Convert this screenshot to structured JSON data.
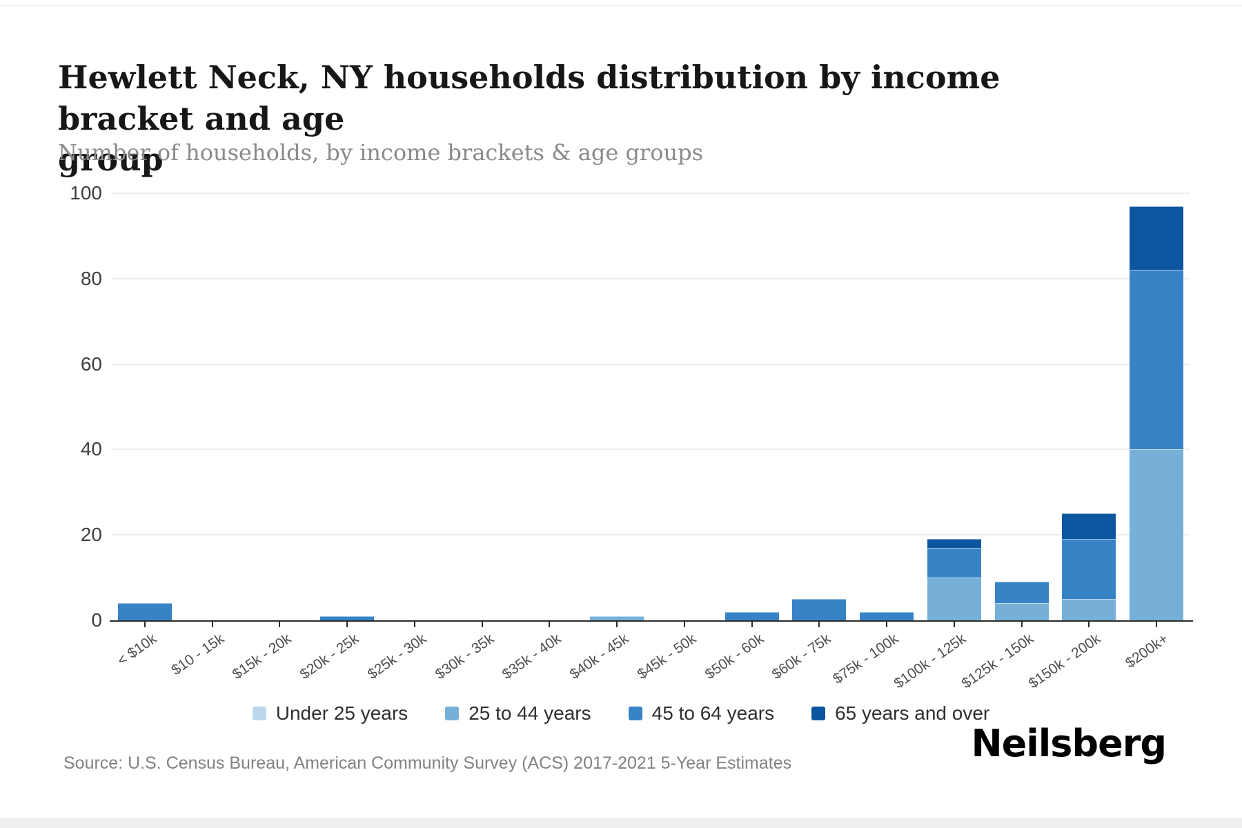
{
  "header": {
    "title": "Hewlett Neck, NY households distribution by income bracket and age\ngroup",
    "subtitle": "Number of households, by income brackets & age groups"
  },
  "footer": {
    "source": "Source: U.S. Census Bureau, American Community Survey (ACS) 2017-2021 5-Year Estimates",
    "brand": "Neilsberg"
  },
  "colors": {
    "under_25": "#bcd7eb",
    "25_to_44": "#76b0d9",
    "45_to_64": "#3783c5",
    "65_and_over": "#0e55a0",
    "gridline": "#ededed",
    "axis": "#2b2b2b"
  },
  "chart_data": {
    "type": "bar",
    "stacked": true,
    "title": "Hewlett Neck, NY households distribution by income bracket and age group",
    "subtitle": "Number of households, by income brackets & age groups",
    "xlabel": "",
    "ylabel": "Number of households",
    "ylim": [
      0,
      100
    ],
    "yticks": [
      0,
      20,
      40,
      60,
      80,
      100
    ],
    "grid": true,
    "legend_position": "bottom",
    "categories": [
      "< $10k",
      "$10 - 15k",
      "$15k - 20k",
      "$20k - 25k",
      "$25k - 30k",
      "$30k - 35k",
      "$35k - 40k",
      "$40k - 45k",
      "$45k - 50k",
      "$50k - 60k",
      "$60k - 75k",
      "$75k - 100k",
      "$100k - 125k",
      "$125k - 150k",
      "$150k - 200k",
      "$200k+"
    ],
    "series": [
      {
        "name": "Under 25 years",
        "color": "#bcd7eb",
        "values": [
          0,
          0,
          0,
          0,
          0,
          0,
          0,
          0,
          0,
          0,
          0,
          0,
          0,
          0,
          0,
          0
        ]
      },
      {
        "name": "25 to 44 years",
        "color": "#76b0d9",
        "values": [
          0,
          0,
          0,
          0,
          0,
          0,
          0,
          1,
          0,
          0,
          0,
          0,
          10,
          4,
          5,
          40
        ]
      },
      {
        "name": "45 to 64 years",
        "color": "#3783c5",
        "values": [
          4,
          0,
          0,
          1,
          0,
          0,
          0,
          0,
          0,
          2,
          5,
          2,
          7,
          5,
          14,
          42
        ]
      },
      {
        "name": "65 years and over",
        "color": "#0e55a0",
        "values": [
          0,
          0,
          0,
          0,
          0,
          0,
          0,
          0,
          0,
          0,
          0,
          0,
          2,
          0,
          6,
          15
        ]
      }
    ],
    "totals_by_category": [
      4,
      0,
      0,
      1,
      0,
      0,
      0,
      1,
      0,
      2,
      5,
      2,
      19,
      9,
      25,
      97
    ]
  }
}
